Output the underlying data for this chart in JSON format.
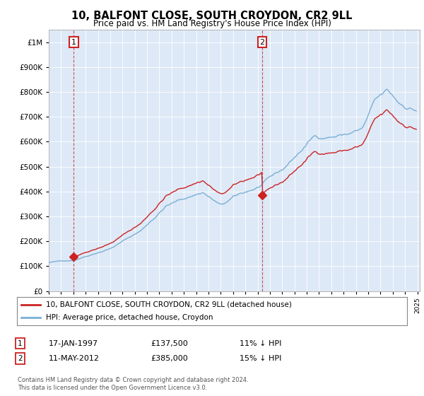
{
  "title": "10, BALFONT CLOSE, SOUTH CROYDON, CR2 9LL",
  "subtitle": "Price paid vs. HM Land Registry's House Price Index (HPI)",
  "legend_line1": "10, BALFONT CLOSE, SOUTH CROYDON, CR2 9LL (detached house)",
  "legend_line2": "HPI: Average price, detached house, Croydon",
  "transaction1_date": "17-JAN-1997",
  "transaction1_price": "£137,500",
  "transaction1_hpi": "11% ↓ HPI",
  "transaction2_date": "11-MAY-2012",
  "transaction2_price": "£385,000",
  "transaction2_hpi": "15% ↓ HPI",
  "footer": "Contains HM Land Registry data © Crown copyright and database right 2024.\nThis data is licensed under the Open Government Licence v3.0.",
  "hpi_color": "#7bafd4",
  "price_color": "#cc2222",
  "background_color": "#dde9f7",
  "annotation_box_color": "#cc2222",
  "ylim_min": 0,
  "ylim_max": 1050000,
  "sale1_year": 1997.04,
  "sale1_price": 137500,
  "sale2_year": 2012.37,
  "sale2_price": 385000
}
